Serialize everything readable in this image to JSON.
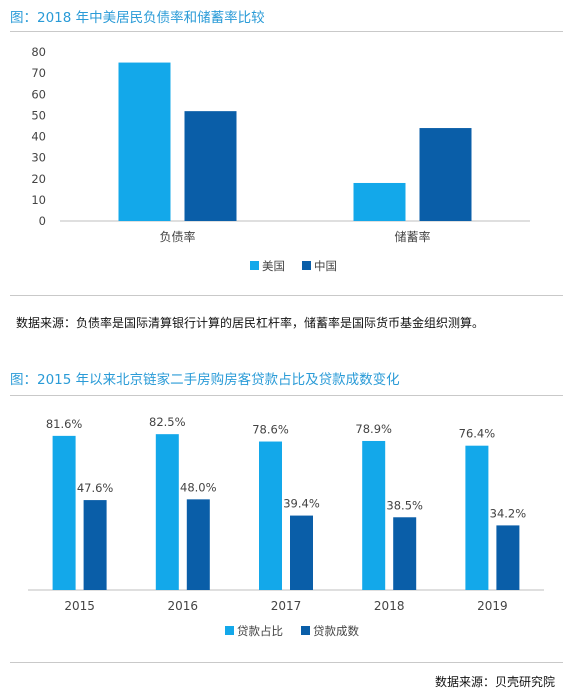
{
  "chart_data": [
    {
      "type": "bar",
      "title": "图：2018 年中美居民负债率和储蓄率比较",
      "categories": [
        "负债率",
        "储蓄率"
      ],
      "series": [
        {
          "name": "美国",
          "values": [
            75,
            18
          ],
          "color": "#13a8ea"
        },
        {
          "name": "中国",
          "values": [
            52,
            44
          ],
          "color": "#0a5ea8"
        }
      ],
      "yticks": [
        0,
        10,
        20,
        30,
        40,
        50,
        60,
        70,
        80
      ],
      "ylim": [
        0,
        80
      ],
      "grid": false,
      "legend": "bottom-center",
      "data_labels": false
    },
    {
      "type": "bar",
      "title": "图：2015 年以来北京链家二手房购房客贷款占比及贷款成数变化",
      "categories": [
        "2015",
        "2016",
        "2017",
        "2018",
        "2019"
      ],
      "series": [
        {
          "name": "贷款占比",
          "values": [
            81.6,
            82.5,
            78.6,
            78.9,
            76.4
          ],
          "labels": [
            "81.6%",
            "82.5%",
            "78.6%",
            "78.9%",
            "76.4%"
          ],
          "color": "#13a8ea"
        },
        {
          "name": "贷款成数",
          "values": [
            47.6,
            48.0,
            39.4,
            38.5,
            34.2
          ],
          "labels": [
            "47.6%",
            "48.0%",
            "39.4%",
            "38.5%",
            "34.2%"
          ],
          "color": "#0a5ea8"
        }
      ],
      "ylim": [
        0,
        90
      ],
      "grid": false,
      "legend": "bottom-center",
      "data_labels": true
    }
  ],
  "notes": {
    "source1": "数据来源：负债率是国际清算银行计算的居民杠杆率，储蓄率是国际货币基金组织测算。",
    "source2": "数据来源：贝壳研究院"
  }
}
